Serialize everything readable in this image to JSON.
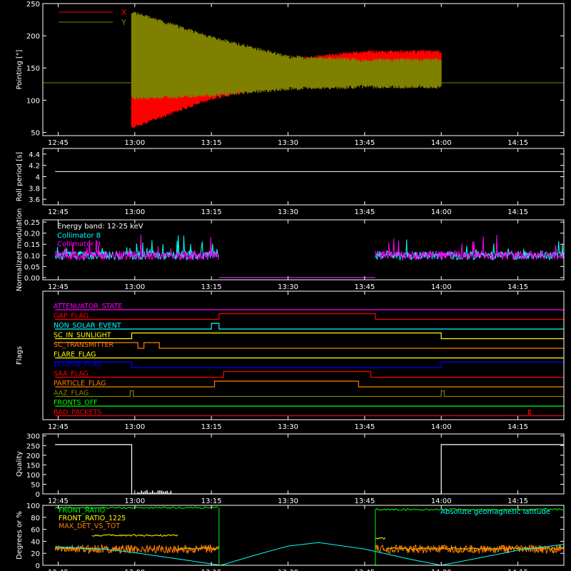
{
  "time_axis": {
    "labels": [
      "12:45",
      "13:00",
      "13:15",
      "13:30",
      "13:45",
      "14:00",
      "14:15"
    ],
    "hours": [
      12.75,
      13.0,
      13.25,
      13.5,
      13.75,
      14.0,
      14.25
    ],
    "range": [
      12.7,
      14.4
    ]
  },
  "chart_data": [
    {
      "type": "line",
      "id": "pointing",
      "ylabel": "Pointing [\"]",
      "ylim": [
        45,
        250
      ],
      "yticks": [
        50,
        100,
        150,
        200,
        250
      ],
      "legend": {
        "placement": "top-left",
        "entries": [
          {
            "name": "X",
            "color": "#ff0000"
          },
          {
            "name": "Y",
            "color": "#808000"
          }
        ]
      },
      "series": [
        {
          "name": "X",
          "color": "#ff0000",
          "start": 12.99,
          "end": 14.0,
          "envelope": [
            {
              "t": 12.99,
              "low": 55,
              "high": 148
            },
            {
              "t": 13.25,
              "low": 100,
              "high": 150
            },
            {
              "t": 13.5,
              "low": 125,
              "high": 165
            },
            {
              "t": 13.75,
              "low": 135,
              "high": 178
            },
            {
              "t": 14.0,
              "low": 135,
              "high": 178
            }
          ]
        },
        {
          "name": "Y",
          "color": "#808000",
          "start": 12.99,
          "end": 14.0,
          "envelope": [
            {
              "t": 12.99,
              "low": 100,
              "high": 240
            },
            {
              "t": 13.25,
              "low": 105,
              "high": 200
            },
            {
              "t": 13.5,
              "low": 115,
              "high": 170
            },
            {
              "t": 13.75,
              "low": 118,
              "high": 165
            },
            {
              "t": 14.0,
              "low": 118,
              "high": 165
            }
          ]
        }
      ],
      "reference_line": {
        "value": 127,
        "color": "#808000"
      }
    },
    {
      "type": "line",
      "id": "roll-period",
      "ylabel": "Roll period [s]",
      "ylim": [
        3.5,
        4.5
      ],
      "yticks": [
        3.6,
        3.8,
        4.0,
        4.2,
        4.4
      ],
      "series": [
        {
          "name": "",
          "color": "#ffffff",
          "value": 4.09,
          "start": 12.74,
          "end": 14.4
        }
      ]
    },
    {
      "type": "line",
      "id": "modulation",
      "ylabel": "Normalized modulation",
      "ylim": [
        -0.01,
        0.26
      ],
      "yticks": [
        0.0,
        0.05,
        0.1,
        0.15,
        0.2,
        0.25
      ],
      "tick_labels": [
        "0.00",
        "0.05",
        "0.10",
        "0.15",
        "0.20",
        "0.25"
      ],
      "annotation": "Energy band: 12-25 keV",
      "legend": {
        "placement": "top-left",
        "entries": [
          {
            "name": "Collimator 8",
            "color": "#00ffff"
          },
          {
            "name": "Collimator 9",
            "color": "#ff00ff"
          }
        ]
      },
      "series": [
        {
          "name": "Collimator 8",
          "color": "#00ffff",
          "mean": 0.1,
          "segments": [
            [
              12.74,
              13.275
            ],
            [
              13.785,
              14.4
            ]
          ]
        },
        {
          "name": "Collimator 9",
          "color": "#ff00ff",
          "mean": 0.1,
          "segments": [
            [
              12.74,
              13.275
            ],
            [
              13.785,
              14.4
            ]
          ]
        }
      ]
    },
    {
      "type": "line",
      "id": "flags",
      "ylabel": "Flags",
      "flags": [
        {
          "name": "ATTENUATOR_STATE",
          "color": "#ff00ff",
          "steps": [
            [
              12.74,
              0
            ]
          ]
        },
        {
          "name": "GAP_FLAG",
          "color": "#ff0000",
          "steps": [
            [
              12.74,
              0
            ],
            [
              13.275,
              1
            ],
            [
              13.785,
              0
            ]
          ]
        },
        {
          "name": "NON_SOLAR_EVENT",
          "color": "#00ffff",
          "steps": [
            [
              12.74,
              0
            ],
            [
              13.25,
              1
            ],
            [
              13.275,
              0
            ]
          ]
        },
        {
          "name": "SC_IN_SUNLIGHT",
          "color": "#ffff00",
          "steps": [
            [
              12.74,
              0
            ],
            [
              12.99,
              1
            ],
            [
              14.0,
              0
            ]
          ]
        },
        {
          "name": "SC_TRANSMITTER",
          "color": "#ff8000",
          "steps": [
            [
              12.74,
              1
            ],
            [
              13.01,
              0
            ],
            [
              13.03,
              1
            ],
            [
              13.08,
              0
            ]
          ]
        },
        {
          "name": "FLARE_FLAG",
          "color": "#ffff00",
          "steps": [
            [
              12.74,
              0
            ]
          ]
        },
        {
          "name": "ECLIPSE_FLAG",
          "color": "#0000ff",
          "steps": [
            [
              12.74,
              1
            ],
            [
              12.99,
              0
            ],
            [
              14.0,
              1
            ]
          ]
        },
        {
          "name": "SAA_FLAG",
          "color": "#ff0000",
          "steps": [
            [
              12.74,
              0
            ],
            [
              13.29,
              1
            ],
            [
              13.77,
              0
            ]
          ]
        },
        {
          "name": "PARTICLE_FLAG",
          "color": "#ff8000",
          "steps": [
            [
              12.74,
              0
            ],
            [
              13.26,
              1
            ],
            [
              13.73,
              0
            ]
          ]
        },
        {
          "name": "AAZ_FLAG",
          "color": "#808000",
          "steps": [
            [
              12.74,
              0
            ],
            [
              12.985,
              1
            ],
            [
              12.995,
              0
            ],
            [
              14.0,
              1
            ],
            [
              14.01,
              0
            ]
          ]
        },
        {
          "name": "FRONTS_OFF",
          "color": "#00ff00",
          "steps": [
            [
              12.74,
              0
            ]
          ]
        },
        {
          "name": "BAD_PACKETS",
          "color": "#ff0000",
          "steps": [
            [
              12.74,
              0
            ],
            [
              14.285,
              1
            ],
            [
              14.29,
              0
            ]
          ]
        }
      ]
    },
    {
      "type": "line",
      "id": "quality",
      "ylabel": "Quality",
      "ylim": [
        0,
        310
      ],
      "yticks": [
        0,
        50,
        100,
        150,
        200,
        250,
        300
      ],
      "series": [
        {
          "name": "",
          "color": "#ffffff",
          "steps": [
            [
              12.74,
              255
            ],
            [
              12.99,
              0
            ],
            [
              14.0,
              255
            ]
          ]
        }
      ]
    },
    {
      "type": "line",
      "id": "ratios",
      "ylabel": "Degrees or %",
      "ylim": [
        0,
        100
      ],
      "yticks": [
        0,
        20,
        40,
        60,
        80,
        100
      ],
      "legend": {
        "placement": "top-left",
        "entries": [
          {
            "name": "FRONT_RATIO",
            "color": "#00ff00"
          },
          {
            "name": "FRONT_RATIO_1225",
            "color": "#ffff00"
          },
          {
            "name": "MAX_DET_VS_TOT",
            "color": "#ff8000"
          }
        ]
      },
      "annotation": "Absolute geomagnetic latitude",
      "annotation_color": "#00ffff",
      "series": [
        {
          "name": "FRONT_RATIO",
          "color": "#00ff00",
          "segments": [
            [
              12.74,
              13.275,
              96
            ],
            [
              13.785,
              14.4,
              93
            ]
          ]
        },
        {
          "name": "FRONT_RATIO_1225",
          "color": "#ffff00",
          "segments": [
            [
              12.74,
              12.86,
              28
            ],
            [
              12.86,
              13.14,
              50
            ],
            [
              13.14,
              13.275,
              28
            ],
            [
              13.785,
              13.82,
              45
            ],
            [
              13.82,
              14.4,
              28
            ]
          ]
        },
        {
          "name": "MAX_DET_VS_TOT",
          "color": "#ff8000",
          "mean": 27,
          "segments": [
            [
              12.74,
              13.275
            ],
            [
              13.785,
              14.4
            ]
          ]
        },
        {
          "name": "Absolute geomagnetic latitude",
          "color": "#00ffff",
          "points": [
            [
              12.74,
              31
            ],
            [
              12.9,
              27
            ],
            [
              13.0,
              21
            ],
            [
              13.15,
              10
            ],
            [
              13.28,
              0
            ],
            [
              13.4,
              18
            ],
            [
              13.5,
              32
            ],
            [
              13.6,
              38
            ],
            [
              13.75,
              27
            ],
            [
              13.9,
              10
            ],
            [
              14.0,
              0
            ],
            [
              14.1,
              10
            ],
            [
              14.25,
              25
            ],
            [
              14.4,
              35
            ]
          ]
        }
      ]
    }
  ]
}
